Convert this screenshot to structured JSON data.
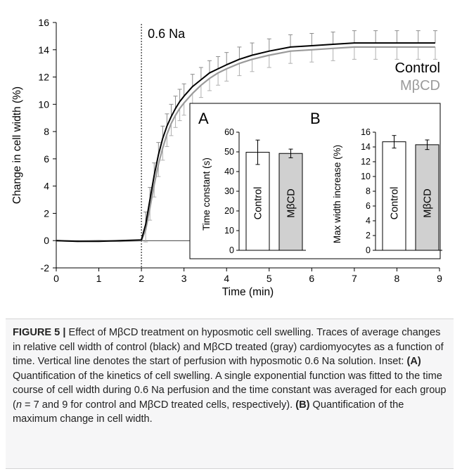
{
  "chart_data": {
    "type": "line",
    "annotation": "0.6 Na",
    "xlabel": "Time (min)",
    "ylabel": "Change in cell width (%)",
    "xlim": [
      0,
      9
    ],
    "ylim": [
      -2,
      16
    ],
    "xticks": [
      "0",
      "1",
      "2",
      "3",
      "4",
      "5",
      "6",
      "7",
      "8",
      "9"
    ],
    "yticks": [
      "-2",
      "0",
      "2",
      "4",
      "6",
      "8",
      "10",
      "12",
      "14",
      "16"
    ],
    "vline_x": 2,
    "legend": [
      "Control",
      "MβCD"
    ],
    "colors": {
      "Control": "#000000",
      "MβCD": "#9a9a9a"
    },
    "series": [
      {
        "name": "Control",
        "x": [
          0,
          0.5,
          1,
          1.5,
          2,
          2.1,
          2.2,
          2.3,
          2.4,
          2.5,
          2.6,
          2.7,
          2.8,
          2.9,
          3.0,
          3.2,
          3.4,
          3.6,
          3.8,
          4.0,
          4.3,
          4.6,
          5.0,
          5.5,
          6.0,
          6.5,
          7.0,
          7.5,
          8.0,
          8.5,
          8.9
        ],
        "y": [
          0,
          -0.05,
          -0.05,
          0,
          0.05,
          1.2,
          3.0,
          4.8,
          6.3,
          7.5,
          8.4,
          9.1,
          9.7,
          10.2,
          10.6,
          11.3,
          11.8,
          12.3,
          12.6,
          12.9,
          13.3,
          13.6,
          13.9,
          14.2,
          14.3,
          14.4,
          14.5,
          14.5,
          14.5,
          14.5,
          14.5
        ]
      },
      {
        "name": "MβCD",
        "x": [
          0,
          0.5,
          1,
          1.5,
          2,
          2.1,
          2.2,
          2.3,
          2.4,
          2.5,
          2.6,
          2.7,
          2.8,
          2.9,
          3.0,
          3.2,
          3.4,
          3.6,
          3.8,
          4.0,
          4.3,
          4.6,
          5.0,
          5.5,
          6.0,
          6.5,
          7.0,
          7.5,
          8.0,
          8.5,
          8.9
        ],
        "y": [
          0,
          -0.05,
          0,
          -0.05,
          0,
          0.8,
          2.4,
          4.1,
          5.6,
          6.8,
          7.8,
          8.6,
          9.2,
          9.7,
          10.1,
          10.8,
          11.4,
          11.9,
          12.3,
          12.6,
          13.0,
          13.3,
          13.6,
          13.9,
          14.0,
          14.1,
          14.2,
          14.2,
          14.2,
          14.2,
          14.2
        ]
      }
    ],
    "insets": [
      {
        "label": "A",
        "type": "bar",
        "ylabel": "Time constant (s)",
        "ylim": [
          0,
          60
        ],
        "yticks": [
          "0",
          "10",
          "20",
          "30",
          "40",
          "50",
          "60"
        ],
        "categories": [
          "Control",
          "MβCD"
        ],
        "values": [
          49.8,
          49.2
        ],
        "errors": [
          6.2,
          2.2
        ],
        "colors": [
          "#ffffff",
          "#d0d0d0"
        ]
      },
      {
        "label": "B",
        "type": "bar",
        "ylabel": "Max width increase (%)",
        "ylim": [
          0,
          16
        ],
        "yticks": [
          "0",
          "2",
          "4",
          "6",
          "8",
          "10",
          "12",
          "14",
          "16"
        ],
        "categories": [
          "Control",
          "MβCD"
        ],
        "values": [
          14.7,
          14.3
        ],
        "errors": [
          0.85,
          0.65
        ],
        "colors": [
          "#ffffff",
          "#d0d0d0"
        ]
      }
    ]
  },
  "caption": {
    "figure_label": "FIGURE 5 |",
    "text_1": " Effect of MβCD treatment on hyposmotic cell swelling. Traces of average changes in relative cell width of control (black) and MβCD treated (gray) cardiomyocytes as a function of time. Vertical line denotes the start of perfusion with hyposmotic 0.6 Na solution. Inset: ",
    "label_a": "(A)",
    "text_2": " Quantification of the kinetics of cell swelling. A single exponential function was fitted to the time course of cell width during 0.6 Na perfusion and the time constant was averaged for each group (",
    "n_var": "n",
    "text_3": " = 7 and 9 for control and MβCD treated cells, respectively). ",
    "label_b": "(B)",
    "text_4": " Quantification of the maximum change in cell width."
  }
}
